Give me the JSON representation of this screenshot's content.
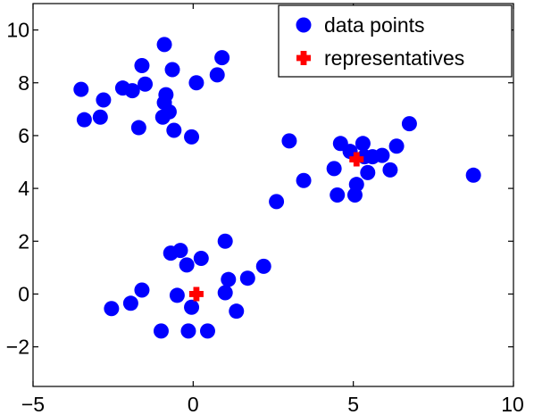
{
  "chart_data": {
    "type": "scatter",
    "title": "",
    "xlabel": "",
    "ylabel": "",
    "xlim": [
      -5,
      10
    ],
    "ylim": [
      -3.5,
      11
    ],
    "xticks": [
      -5,
      0,
      5,
      10
    ],
    "yticks": [
      -2,
      0,
      2,
      4,
      6,
      8,
      10
    ],
    "xtick_labels": [
      "−5",
      "0",
      "5",
      "10"
    ],
    "ytick_labels": [
      "−2",
      "0",
      "2",
      "4",
      "6",
      "8",
      "10"
    ],
    "grid": false,
    "legend_position": "top-right",
    "series": [
      {
        "name": "data points",
        "marker": "circle",
        "color": "#0000ff",
        "points": [
          [
            -3.5,
            7.75
          ],
          [
            -3.4,
            6.6
          ],
          [
            -2.8,
            7.35
          ],
          [
            -2.9,
            6.7
          ],
          [
            -2.2,
            7.8
          ],
          [
            -1.9,
            7.7
          ],
          [
            -1.6,
            8.65
          ],
          [
            -1.5,
            7.95
          ],
          [
            -1.7,
            6.3
          ],
          [
            -0.9,
            9.45
          ],
          [
            -0.65,
            8.5
          ],
          [
            -0.85,
            7.55
          ],
          [
            -0.9,
            7.25
          ],
          [
            -0.95,
            6.7
          ],
          [
            -0.75,
            6.9
          ],
          [
            -0.6,
            6.2
          ],
          [
            0.1,
            8.0
          ],
          [
            0.75,
            8.3
          ],
          [
            0.9,
            8.95
          ],
          [
            -0.05,
            5.95
          ],
          [
            3.0,
            5.8
          ],
          [
            2.6,
            3.5
          ],
          [
            3.45,
            4.3
          ],
          [
            4.4,
            4.75
          ],
          [
            4.5,
            3.75
          ],
          [
            4.6,
            5.7
          ],
          [
            4.9,
            5.4
          ],
          [
            5.05,
            3.75
          ],
          [
            5.1,
            4.15
          ],
          [
            5.3,
            5.7
          ],
          [
            5.35,
            5.2
          ],
          [
            5.45,
            4.6
          ],
          [
            5.6,
            5.2
          ],
          [
            5.9,
            5.25
          ],
          [
            6.15,
            4.7
          ],
          [
            6.35,
            5.6
          ],
          [
            6.75,
            6.45
          ],
          [
            8.75,
            4.5
          ],
          [
            -0.7,
            1.55
          ],
          [
            -0.4,
            1.65
          ],
          [
            -0.2,
            1.1
          ],
          [
            0.25,
            1.35
          ],
          [
            1.0,
            2.0
          ],
          [
            1.1,
            0.55
          ],
          [
            1.7,
            0.6
          ],
          [
            2.2,
            1.05
          ],
          [
            1.0,
            0.05
          ],
          [
            -0.5,
            -0.05
          ],
          [
            -0.05,
            -0.5
          ],
          [
            -1.6,
            0.15
          ],
          [
            -1.95,
            -0.35
          ],
          [
            -2.55,
            -0.55
          ],
          [
            1.35,
            -0.65
          ],
          [
            -1.0,
            -1.4
          ],
          [
            -0.15,
            -1.4
          ],
          [
            0.45,
            -1.4
          ]
        ]
      },
      {
        "name": "representatives",
        "marker": "plus",
        "color": "#ff0000",
        "points": [
          [
            5.1,
            5.1
          ],
          [
            0.1,
            0.0
          ]
        ]
      }
    ]
  }
}
